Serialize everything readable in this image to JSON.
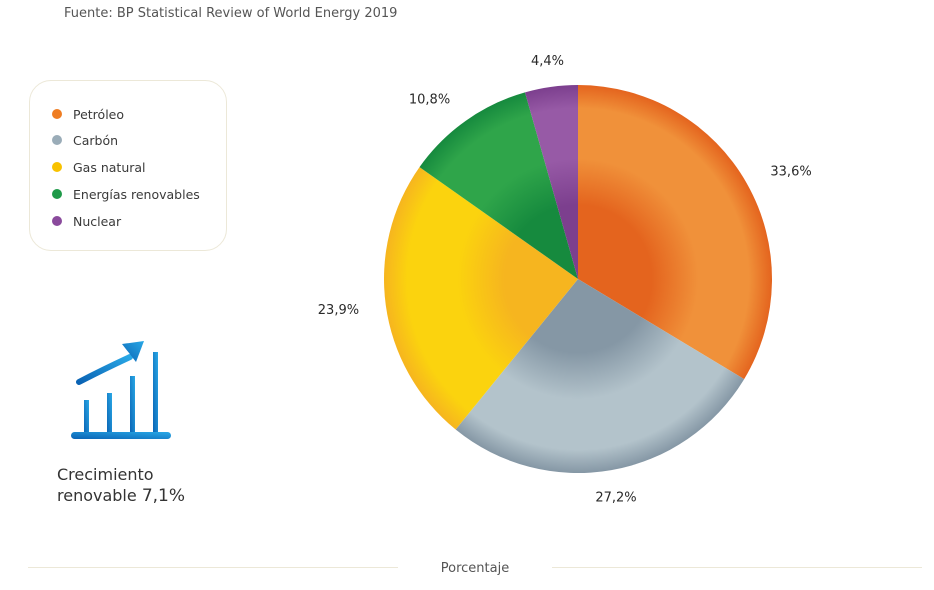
{
  "source": "Fuente: BP Statistical Review of World Energy 2019",
  "legend": {
    "items": [
      {
        "label": "Petróleo",
        "color": "#ef7d22"
      },
      {
        "label": "Carbón",
        "color": "#9aacb8"
      },
      {
        "label": "Gas natural",
        "color": "#f8c200"
      },
      {
        "label": "Energías renovables",
        "color": "#1f9a49"
      },
      {
        "label": "Nuclear",
        "color": "#8a4a9c"
      }
    ]
  },
  "growth": {
    "icon": "bar-chart-growth-icon",
    "line1": "Crecimiento",
    "line2_prefix": "renovable ",
    "line2_value": "7,1%"
  },
  "footer": {
    "label": "Porcentaje"
  },
  "chart_data": {
    "type": "pie",
    "title": "",
    "categories": [
      "Petróleo",
      "Carbón",
      "Gas natural",
      "Energías renovables",
      "Nuclear"
    ],
    "values": [
      33.6,
      27.2,
      23.9,
      10.8,
      4.4
    ],
    "labels": [
      "33,6%",
      "27,2%",
      "23,9%",
      "10,8%",
      "4,4%"
    ],
    "colors": [
      {
        "light": "#f0913a",
        "dark": "#e4641e"
      },
      {
        "light": "#b3c3cb",
        "dark": "#8597a5"
      },
      {
        "light": "#fbd30e",
        "dark": "#f6b51f"
      },
      {
        "light": "#2fa54a",
        "dark": "#168a3e"
      },
      {
        "light": "#975aa6",
        "dark": "#7c3f8e"
      }
    ],
    "start_angle_deg": 0,
    "direction": "clockwise"
  }
}
